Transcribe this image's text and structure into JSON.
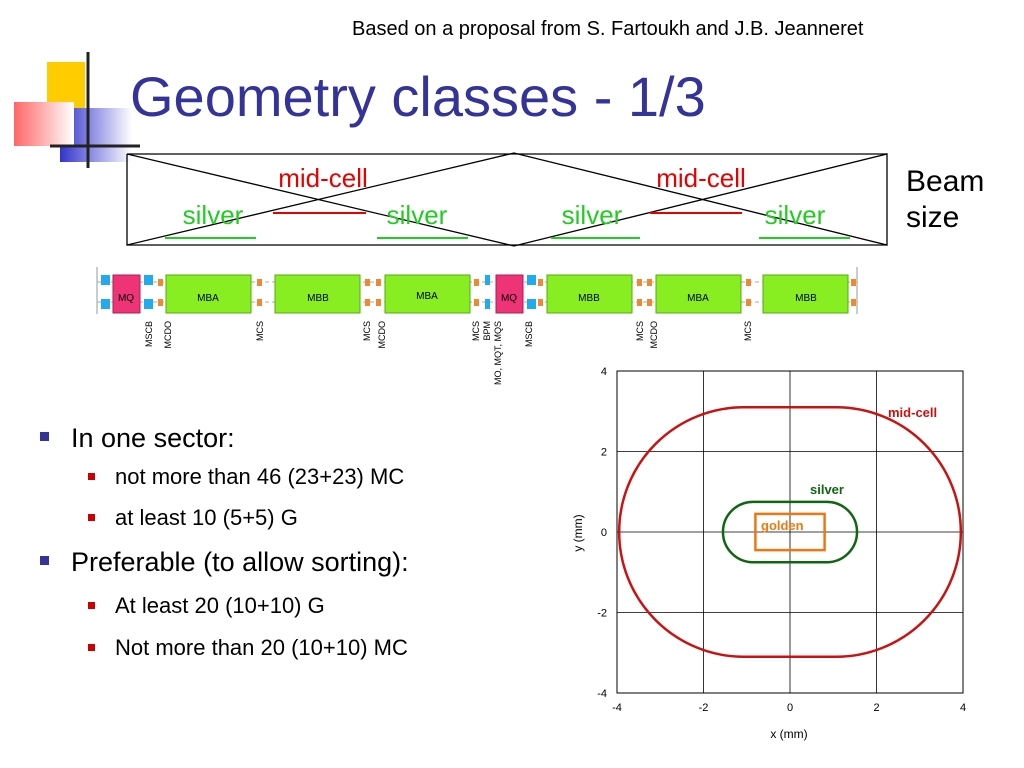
{
  "slide": {
    "credit": "Based on a proposal from S. Fartoukh and J.B. Jeanneret",
    "title": "Geometry classes - 1/3",
    "beam_size_line1": "Beam",
    "beam_size_line2": "size"
  },
  "envelope": {
    "mid_cell_left": "mid-cell",
    "mid_cell_right": "mid-cell",
    "silver_1": "silver",
    "silver_2": "silver",
    "silver_3": "silver",
    "silver_4": "silver"
  },
  "lattice": {
    "magnets": [
      "MQ",
      "MBA",
      "MBB",
      "MBA",
      "MQ",
      "MBB",
      "MBA",
      "MBB"
    ],
    "elements": [
      "MSCB",
      "MCDO",
      "MCS",
      "MCS",
      "MCDO",
      "MCS",
      "BPM",
      "MO, MQT, MQS",
      "MSCB",
      "MCS",
      "MCDO",
      "MCS"
    ]
  },
  "bullets": [
    {
      "text": "In one sector:",
      "subs": [
        "not more than 46 (23+23) MC",
        "at least 10 (5+5) G"
      ]
    },
    {
      "text": "Preferable (to allow sorting):",
      "subs": [
        "At least 20 (10+10) G",
        "Not more than 20 (10+10) MC"
      ]
    }
  ],
  "colors": {
    "title": "#333399",
    "mid_cell": "#e60000",
    "silver": "#22cc22",
    "quad": "#ee3377",
    "dipole": "#88ee22",
    "corrector": "#22aaee",
    "chart_mid_cell": "#cc1111",
    "chart_silver": "#116611",
    "chart_golden": "#ee7711"
  },
  "chart_data": {
    "type": "line",
    "xlabel": "x (mm)",
    "ylabel": "y (mm)",
    "xlim": [
      -4,
      4
    ],
    "ylim": [
      -4,
      4
    ],
    "xticks": [
      -4,
      -2,
      0,
      2,
      4
    ],
    "yticks": [
      -4,
      -2,
      0,
      2,
      4
    ],
    "grid": true,
    "series": [
      {
        "name": "mid-cell",
        "shape": "rounded-rectangle",
        "half_width": 3.95,
        "half_height": 3.1,
        "corner_radius": 3.0
      },
      {
        "name": "silver",
        "shape": "stadium",
        "half_width": 1.55,
        "half_height": 0.75,
        "corner_radius": 0.75
      },
      {
        "name": "golden",
        "shape": "rectangle",
        "half_width": 0.8,
        "half_height": 0.45
      }
    ]
  }
}
